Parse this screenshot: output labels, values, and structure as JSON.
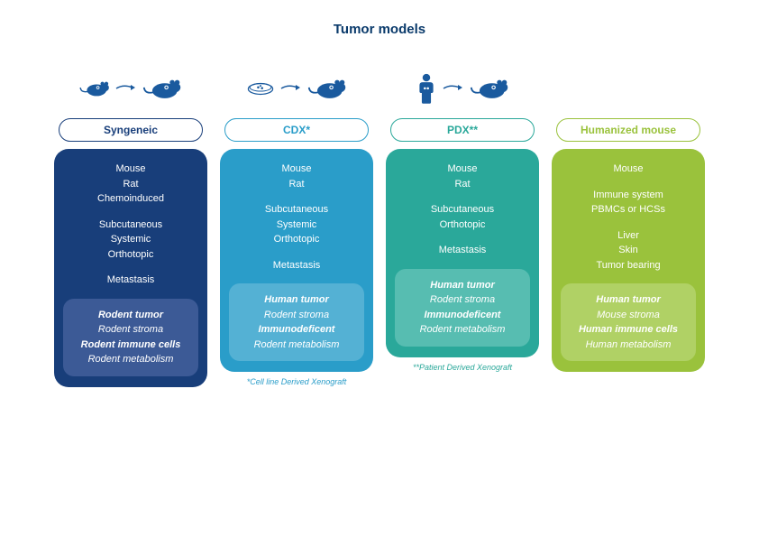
{
  "title": "Tumor models",
  "columns": [
    {
      "key": "syngeneic",
      "pill_label": "Syngeneic",
      "pill_color": "#183e7a",
      "body_bg": "#183e7a",
      "sub_bg": "#3c5a96",
      "icon": "mouse-to-mouse",
      "icon_color": "#1a5a9e",
      "groups": [
        [
          "Mouse",
          "Rat",
          "Chemoinduced"
        ],
        [
          "Subcutaneous",
          "Systemic",
          "Orthotopic"
        ],
        [
          "Metastasis"
        ]
      ],
      "sub": [
        {
          "t": "Rodent tumor",
          "s": "em"
        },
        {
          "t": "Rodent stroma",
          "s": "it"
        },
        {
          "t": "Rodent immune cells",
          "s": "em"
        },
        {
          "t": "Rodent metabolism",
          "s": "it"
        }
      ],
      "footnote": null
    },
    {
      "key": "cdx",
      "pill_label": "CDX*",
      "pill_color": "#2a9dc9",
      "body_bg": "#2a9dc9",
      "sub_bg": "#54b1d4",
      "icon": "dish-to-mouse",
      "icon_color": "#1a5a9e",
      "groups": [
        [
          "Mouse",
          "Rat"
        ],
        [
          "Subcutaneous",
          "Systemic",
          "Orthotopic"
        ],
        [
          "Metastasis"
        ]
      ],
      "sub": [
        {
          "t": "Human tumor",
          "s": "em"
        },
        {
          "t": "Rodent stroma",
          "s": "it"
        },
        {
          "t": "Immunodeficent",
          "s": "em"
        },
        {
          "t": "Rodent metabolism",
          "s": "it"
        }
      ],
      "footnote": "*Cell line Derived Xenograft",
      "footnote_color": "#2a9dc9"
    },
    {
      "key": "pdx",
      "pill_label": "PDX**",
      "pill_color": "#2aa89a",
      "body_bg": "#2aa89a",
      "sub_bg": "#57bdb1",
      "icon": "person-to-mouse",
      "icon_color": "#1a5a9e",
      "groups": [
        [
          "Mouse",
          "Rat"
        ],
        [
          "Subcutaneous",
          "Orthotopic"
        ],
        [
          "Metastasis"
        ]
      ],
      "sub": [
        {
          "t": "Human tumor",
          "s": "em"
        },
        {
          "t": "Rodent stroma",
          "s": "it"
        },
        {
          "t": "Immunodeficent",
          "s": "em"
        },
        {
          "t": "Rodent metabolism",
          "s": "it"
        }
      ],
      "footnote": "**Patient Derived Xenograft",
      "footnote_color": "#2aa89a"
    },
    {
      "key": "humanized",
      "pill_label": "Humanized mouse",
      "pill_color": "#9ac23c",
      "body_bg": "#9ac23c",
      "sub_bg": "#b0d165",
      "icon": null,
      "groups": [
        [
          "Mouse"
        ],
        [
          "Immune system",
          "PBMCs or HCSs"
        ],
        [
          "Liver",
          "Skin",
          "Tumor bearing"
        ]
      ],
      "sub": [
        {
          "t": "Human tumor",
          "s": "em"
        },
        {
          "t": "Mouse stroma",
          "s": "it"
        },
        {
          "t": "Human immune cells",
          "s": "em"
        },
        {
          "t": "Human metabolism",
          "s": "it"
        }
      ],
      "footnote": null
    }
  ]
}
